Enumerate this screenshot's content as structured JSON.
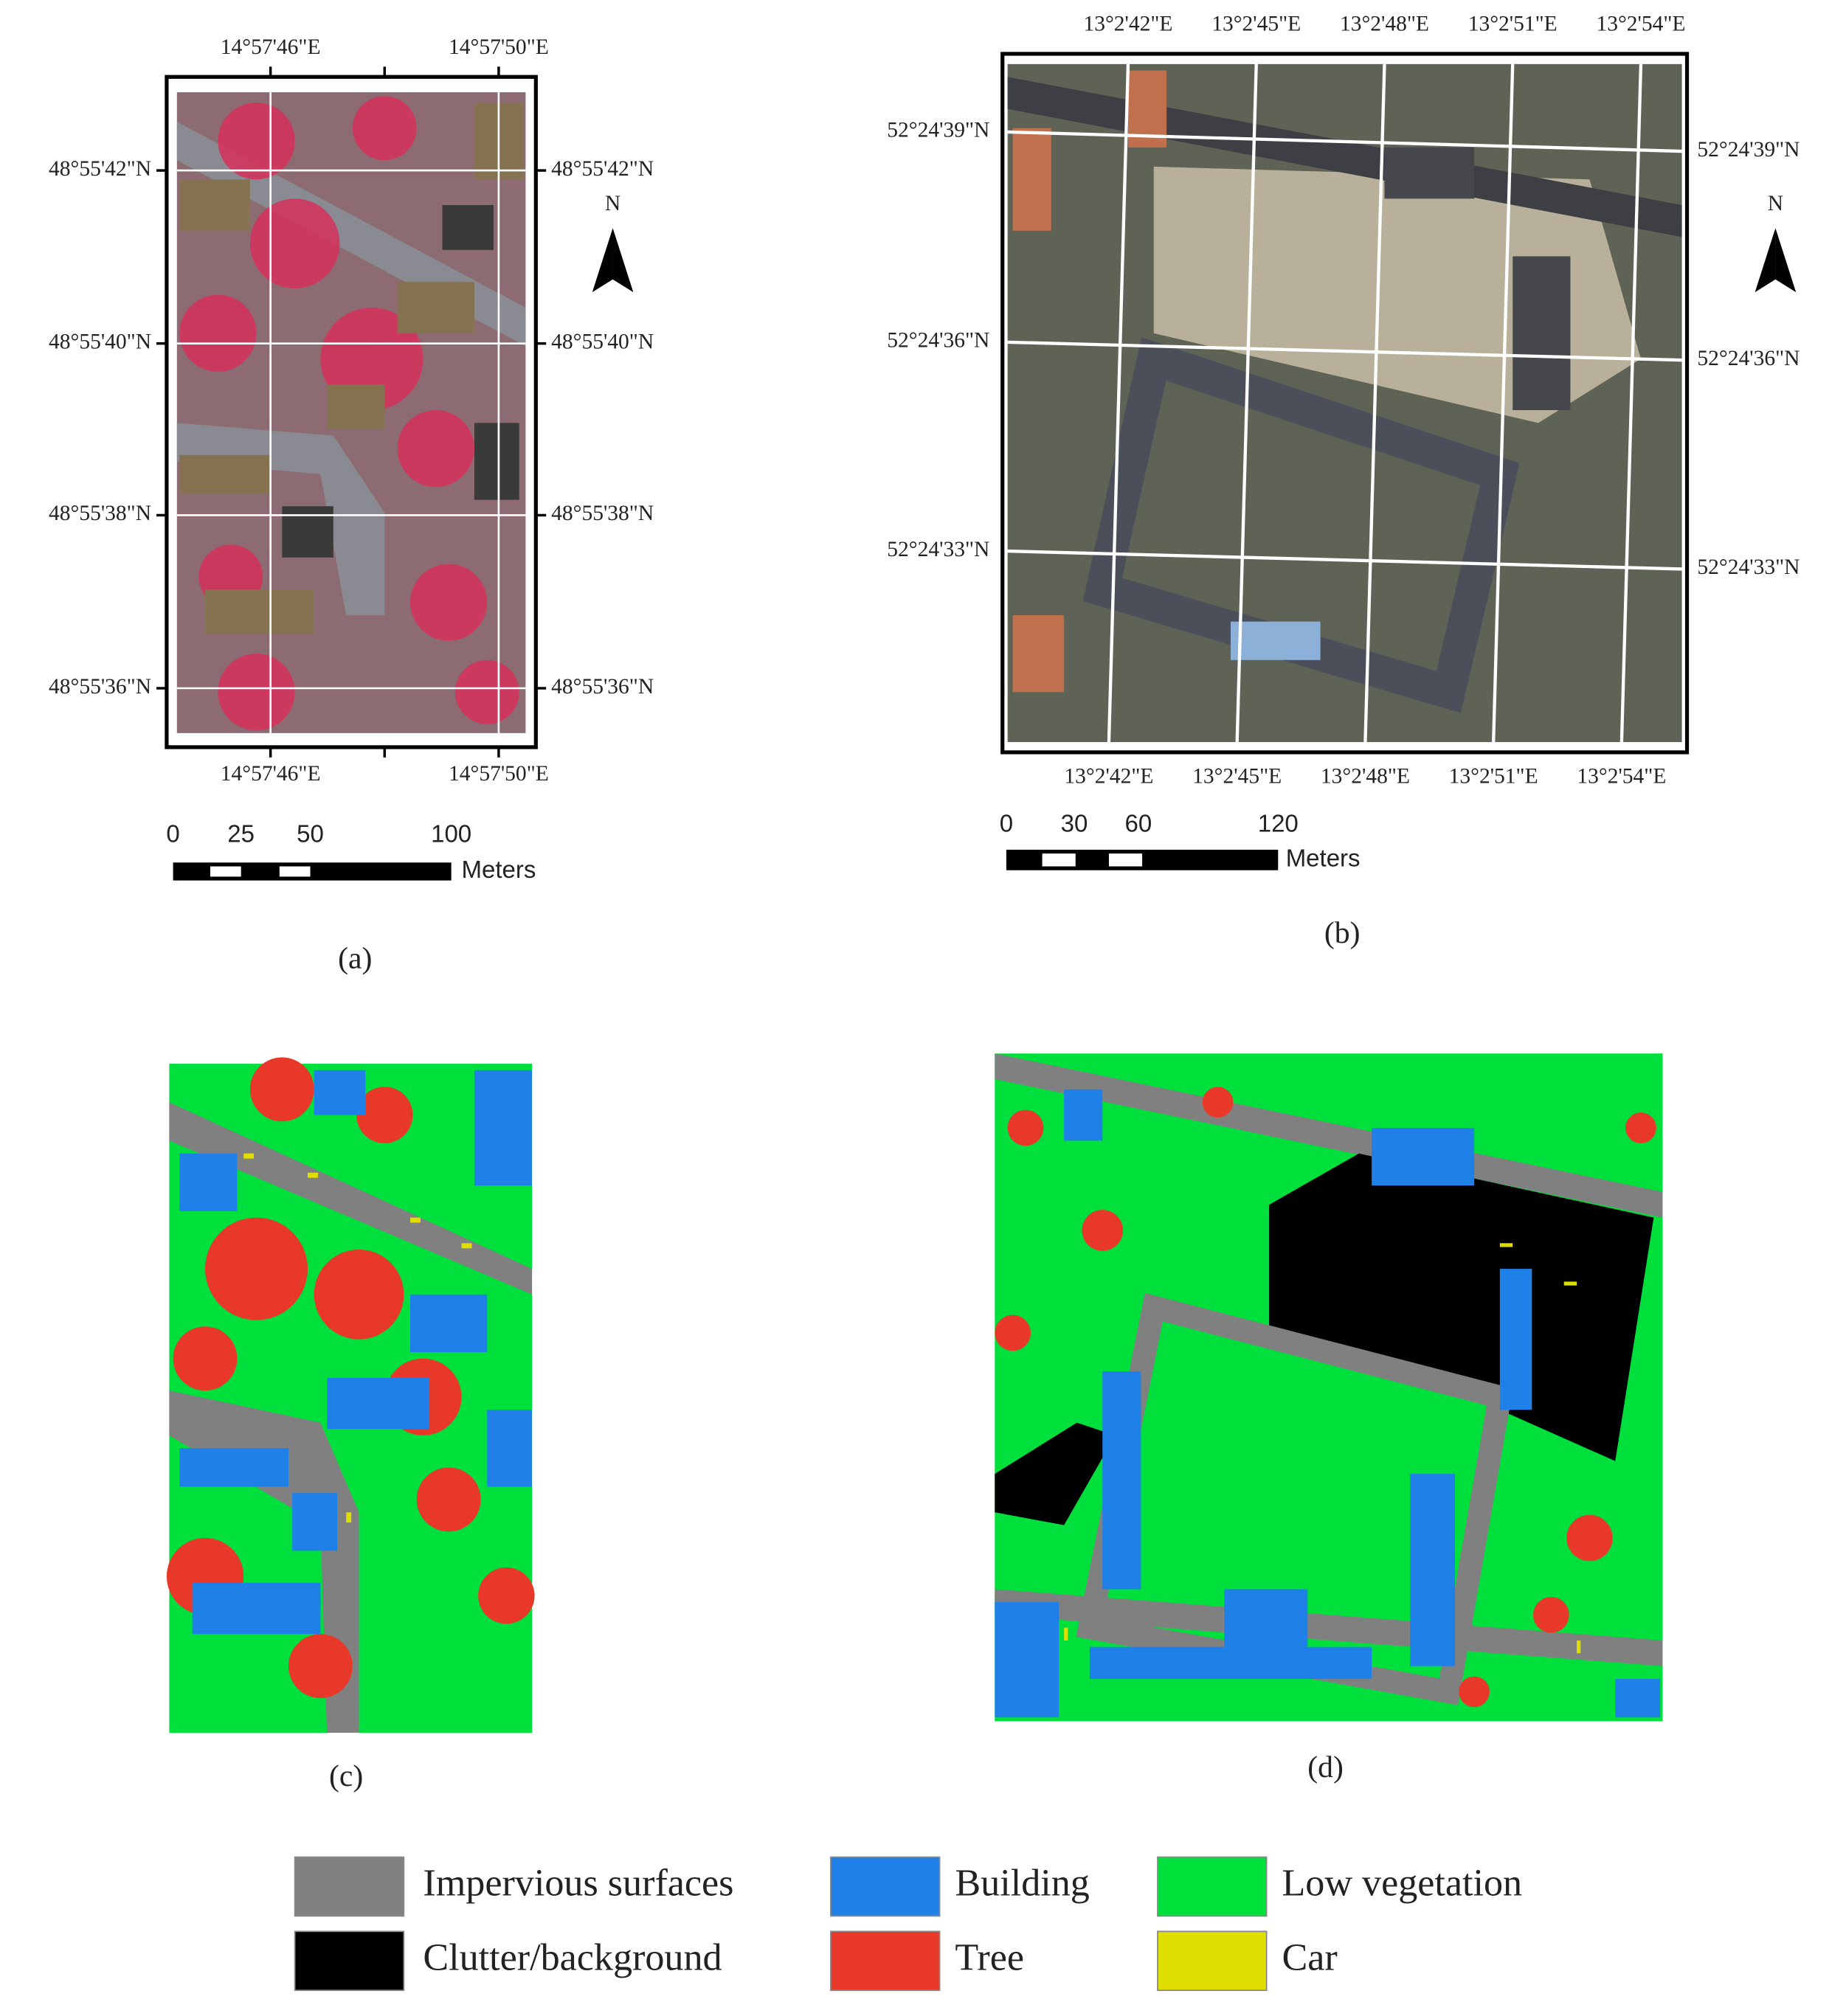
{
  "panels": {
    "a": {
      "top_labels": [
        "14°57'46\"E",
        "14°57'50\"E"
      ],
      "bottom_labels": [
        "14°57'46\"E",
        "14°57'50\"E"
      ],
      "left_labels": [
        "48°55'42\"N",
        "48°55'40\"N",
        "48°55'38\"N",
        "48°55'36\"N"
      ],
      "right_labels": [
        "48°55'42\"N",
        "48°55'40\"N",
        "48°55'38\"N",
        "48°55'36\"N"
      ],
      "north": "N",
      "scale_labels": [
        "0",
        "25",
        "50",
        "100"
      ],
      "scale_unit": "Meters",
      "caption": "(a)"
    },
    "b": {
      "top_labels": [
        "13°2'42\"E",
        "13°2'45\"E",
        "13°2'48\"E",
        "13°2'51\"E",
        "13°2'54\"E"
      ],
      "bottom_labels": [
        "13°2'42\"E",
        "13°2'45\"E",
        "13°2'48\"E",
        "13°2'51\"E",
        "13°2'54\"E"
      ],
      "left_labels": [
        "52°24'39\"N",
        "52°24'36\"N",
        "52°24'33\"N"
      ],
      "right_labels": [
        "52°24'39\"N",
        "52°24'36\"N",
        "52°24'33\"N"
      ],
      "north": "N",
      "scale_labels": [
        "0",
        "30",
        "60",
        "120"
      ],
      "scale_unit": "Meters",
      "caption": "(b)"
    },
    "c": {
      "caption": "(c)"
    },
    "d": {
      "caption": "(d)"
    }
  },
  "legend": [
    {
      "name": "Impervious surfaces",
      "color": "#808080"
    },
    {
      "name": "Building",
      "color": "#1f80e8"
    },
    {
      "name": "Low vegetation",
      "color": "#00e03c"
    },
    {
      "name": "Clutter/background",
      "color": "#000000"
    },
    {
      "name": "Tree",
      "color": "#e8382a"
    },
    {
      "name": "Car",
      "color": "#dede00"
    }
  ]
}
